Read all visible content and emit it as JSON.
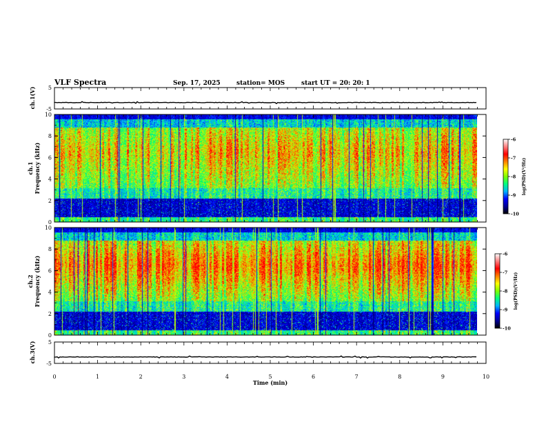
{
  "header": {
    "title": "VLF Spectra",
    "date": "Sep. 17, 2025",
    "station": "station= MOS",
    "start": "start  UT  =  20: 20: 1"
  },
  "chart_data": [
    {
      "type": "line",
      "name": "panel-ch1-voltage",
      "ylabel": "ch.1(V)",
      "ylim": [
        -5,
        5
      ],
      "yticks": [
        "5",
        "-5"
      ],
      "xlim": [
        0,
        10
      ],
      "baseline": -2,
      "line_end": 9.8
    },
    {
      "type": "heatmap",
      "name": "panel-ch1-spectrogram",
      "ylabel": "ch.1\nFrequency (kHz)",
      "ylabel_top": "ch.1",
      "ylabel_bottom": "Frequency (kHz)",
      "ylim": [
        0,
        10
      ],
      "yticks": [
        "0",
        "2",
        "4",
        "6",
        "8",
        "10"
      ],
      "xlim": [
        0,
        10
      ],
      "data_end": 9.8,
      "band_center_khz": 6.5,
      "colorbar": {
        "label": "log(PSD)(V²/Hz)",
        "ticks": [
          "-6",
          "-7",
          "-8",
          "-9",
          "-10"
        ],
        "range": [
          -10,
          -6
        ]
      }
    },
    {
      "type": "heatmap",
      "name": "panel-ch2-spectrogram",
      "ylabel": "ch.2\nFrequency (kHz)",
      "ylabel_top": "ch.2",
      "ylabel_bottom": "Frequency (kHz)",
      "ylim": [
        0,
        10
      ],
      "yticks": [
        "0",
        "2",
        "4",
        "6",
        "8",
        "10"
      ],
      "xlim": [
        0,
        10
      ],
      "data_end": 9.8,
      "band_center_khz": 6.5,
      "colorbar": {
        "label": "log(PSD)(V²/Hz)",
        "ticks": [
          "-6",
          "-7",
          "-8",
          "-9",
          "-10"
        ],
        "range": [
          -10,
          -6
        ]
      }
    },
    {
      "type": "line",
      "name": "panel-ch3-voltage",
      "ylabel": "ch.3(V)",
      "ylim": [
        -5,
        5
      ],
      "yticks": [
        "5",
        "-5"
      ],
      "xlim": [
        0,
        10
      ],
      "baseline": -2,
      "line_end": 9.8
    }
  ],
  "xaxis": {
    "label": "Time  (min)",
    "ticks": [
      "0",
      "1",
      "2",
      "3",
      "4",
      "5",
      "6",
      "7",
      "8",
      "9",
      "10"
    ],
    "range": [
      0,
      10
    ]
  },
  "colors": {
    "ramp": [
      "#000050",
      "#0000ff",
      "#00c8ff",
      "#00ff64",
      "#c8ff00",
      "#ff8c00",
      "#ff0000"
    ],
    "colorbar_ramp": [
      "#000000",
      "#000096",
      "#0000ff",
      "#00b4ff",
      "#00ff80",
      "#80ff00",
      "#ffff00",
      "#ff8000",
      "#ff0000",
      "#ff8080",
      "#ffffff"
    ]
  }
}
